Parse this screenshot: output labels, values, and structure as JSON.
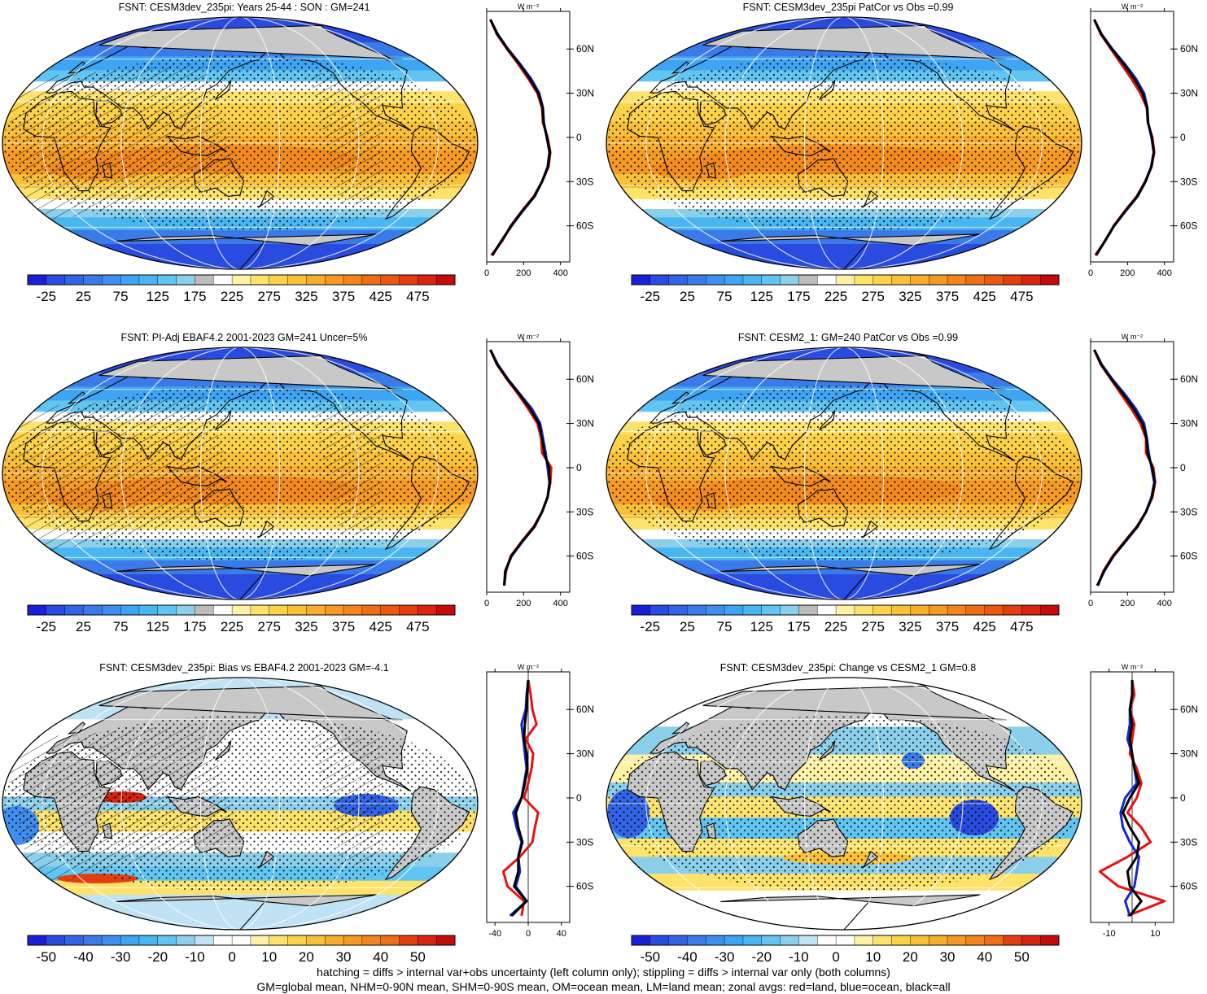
{
  "panels": [
    {
      "id": "p1",
      "title": "FSNT: CESM3dev_235pi: Years 25-44 : SON : GM=241",
      "kind": "abs",
      "hatched": true,
      "colorbar_labels": [
        "-25",
        "25",
        "75",
        "125",
        "175",
        "225",
        "275",
        "325",
        "375",
        "425",
        "475"
      ],
      "zonal": {
        "xticks": [
          "0",
          "200",
          "400"
        ],
        "xlim": [
          0,
          450
        ],
        "unit": "W m⁻²",
        "lat_labels": [
          "60N",
          "30N",
          "0",
          "30S",
          "60S"
        ]
      }
    },
    {
      "id": "p2",
      "title": "FSNT: CESM3dev_235pi PatCor vs Obs =0.99",
      "kind": "abs",
      "hatched": false,
      "colorbar_labels": [
        "-25",
        "25",
        "75",
        "125",
        "175",
        "225",
        "275",
        "325",
        "375",
        "425",
        "475"
      ],
      "zonal": {
        "xticks": [
          "0",
          "200",
          "400"
        ],
        "xlim": [
          0,
          450
        ],
        "unit": "W m⁻²",
        "lat_labels": [
          "60N",
          "30N",
          "0",
          "30S",
          "60S"
        ]
      }
    },
    {
      "id": "p3",
      "title": "FSNT: PI-Adj EBAF4.2 2001-2023 GM=241 Uncer=5%",
      "kind": "abs",
      "hatched": true,
      "colorbar_labels": [
        "-25",
        "25",
        "75",
        "125",
        "175",
        "225",
        "275",
        "325",
        "375",
        "425",
        "475"
      ],
      "zonal": {
        "xticks": [
          "0",
          "200",
          "400"
        ],
        "xlim": [
          0,
          450
        ],
        "unit": "W m⁻²",
        "lat_labels": [
          "60N",
          "30N",
          "0",
          "30S",
          "60S"
        ]
      }
    },
    {
      "id": "p4",
      "title": "FSNT: CESM2_1: GM=240 PatCor vs Obs =0.99",
      "kind": "abs",
      "hatched": false,
      "colorbar_labels": [
        "-25",
        "25",
        "75",
        "125",
        "175",
        "225",
        "275",
        "325",
        "375",
        "425",
        "475"
      ],
      "zonal": {
        "xticks": [
          "0",
          "200",
          "400"
        ],
        "xlim": [
          0,
          450
        ],
        "unit": "W m⁻²",
        "lat_labels": [
          "60N",
          "30N",
          "0",
          "30S",
          "60S"
        ]
      }
    },
    {
      "id": "p5",
      "title": "FSNT: CESM3dev_235pi: Bias vs EBAF4.2 2001-2023  GM=-4.1",
      "kind": "diff",
      "hatched": true,
      "colorbar_labels": [
        "-50",
        "-40",
        "-30",
        "-20",
        "-10",
        "0",
        "10",
        "20",
        "30",
        "40",
        "50"
      ],
      "zonal": {
        "xticks": [
          "-40",
          "0",
          "40"
        ],
        "xlim": [
          -50,
          50
        ],
        "unit": "W m⁻²",
        "lat_labels": [
          "60N",
          "30N",
          "0",
          "30S",
          "60S"
        ]
      }
    },
    {
      "id": "p6",
      "title": "FSNT: CESM3dev_235pi: Change vs CESM2_1 GM=0.8",
      "kind": "diff",
      "hatched": false,
      "colorbar_labels": [
        "-50",
        "-40",
        "-30",
        "-20",
        "-10",
        "0",
        "10",
        "20",
        "30",
        "40",
        "50"
      ],
      "zonal": {
        "xticks": [
          "-10",
          "10"
        ],
        "xlim": [
          -18,
          18
        ],
        "unit": "W m⁻²",
        "lat_labels": [
          "60N",
          "30N",
          "0",
          "30S",
          "60S"
        ]
      }
    }
  ],
  "colors": {
    "abs_scale": [
      "#1b20d8",
      "#2a4be0",
      "#3363e6",
      "#3b7ae9",
      "#3f8ff0",
      "#3fa4f2",
      "#49b6f2",
      "#62c4f0",
      "#8ccfeb",
      "#bcbcbc",
      "#ffffff",
      "#fff2a8",
      "#fde36c",
      "#fbd24a",
      "#f9c13a",
      "#f7ae2e",
      "#f59a24",
      "#f2861c",
      "#ee7016",
      "#ea5812",
      "#e23e10",
      "#d82410",
      "#c40c0c"
    ],
    "diff_scale": [
      "#1b20d8",
      "#2a4be0",
      "#3363e6",
      "#3b7ae9",
      "#3f8ff0",
      "#3fa4f2",
      "#49b6f2",
      "#62c4f0",
      "#8ccfeb",
      "#bfe2f4",
      "#ffffff",
      "#ffffff",
      "#fff2a8",
      "#fde36c",
      "#fbd24a",
      "#f9c13a",
      "#f7ae2e",
      "#f59a24",
      "#f2861c",
      "#ee7016",
      "#e23e10",
      "#d82410",
      "#c40c0c"
    ],
    "land": "#c8c8c8",
    "zonal_red": "#e81010",
    "zonal_blue": "#1428d0",
    "zonal_black": "#000000"
  },
  "chart_data": [
    {
      "type": "line",
      "panel": "p1",
      "ylabel": "W m⁻²",
      "lat": [
        -80,
        -70,
        -60,
        -50,
        -40,
        -30,
        -20,
        -10,
        0,
        10,
        20,
        30,
        40,
        50,
        60,
        70,
        80
      ],
      "series": [
        {
          "color": "red",
          "values": [
            25,
            85,
            130,
            190,
            255,
            300,
            335,
            345,
            330,
            305,
            300,
            275,
            225,
            170,
            110,
            55,
            20
          ]
        },
        {
          "color": "blue",
          "values": [
            30,
            80,
            135,
            195,
            260,
            300,
            330,
            340,
            325,
            310,
            305,
            285,
            240,
            180,
            115,
            60,
            20
          ]
        },
        {
          "color": "black",
          "values": [
            30,
            82,
            133,
            193,
            258,
            300,
            332,
            342,
            327,
            308,
            303,
            280,
            232,
            176,
            113,
            58,
            20
          ]
        }
      ]
    },
    {
      "type": "line",
      "panel": "p2",
      "ylabel": "W m⁻²",
      "lat": [
        -80,
        -70,
        -60,
        -50,
        -40,
        -30,
        -20,
        -10,
        0,
        10,
        20,
        30,
        40,
        50,
        60,
        70,
        80
      ],
      "series": [
        {
          "color": "red",
          "values": [
            25,
            80,
            125,
            185,
            250,
            295,
            330,
            345,
            335,
            310,
            305,
            270,
            220,
            165,
            110,
            55,
            20
          ]
        },
        {
          "color": "blue",
          "values": [
            30,
            78,
            128,
            190,
            255,
            298,
            328,
            342,
            330,
            312,
            308,
            290,
            245,
            185,
            118,
            60,
            20
          ]
        },
        {
          "color": "black",
          "values": [
            30,
            79,
            127,
            188,
            253,
            297,
            329,
            343,
            332,
            311,
            306,
            282,
            235,
            178,
            115,
            58,
            20
          ]
        }
      ]
    },
    {
      "type": "line",
      "panel": "p3",
      "ylabel": "W m⁻²",
      "lat": [
        -80,
        -70,
        -60,
        -50,
        -40,
        -30,
        -20,
        -10,
        0,
        10,
        20,
        30,
        40,
        50,
        60,
        70,
        80
      ],
      "series": [
        {
          "color": "red",
          "values": [
            95,
            105,
            130,
            190,
            255,
            300,
            330,
            345,
            350,
            300,
            295,
            275,
            225,
            170,
            110,
            55,
            20
          ]
        },
        {
          "color": "blue",
          "values": [
            95,
            100,
            135,
            195,
            260,
            300,
            330,
            340,
            330,
            320,
            305,
            290,
            245,
            180,
            115,
            60,
            20
          ]
        },
        {
          "color": "black",
          "values": [
            95,
            102,
            133,
            193,
            258,
            300,
            330,
            342,
            338,
            312,
            300,
            283,
            235,
            176,
            113,
            58,
            20
          ]
        }
      ]
    },
    {
      "type": "line",
      "panel": "p4",
      "ylabel": "W m⁻²",
      "lat": [
        -80,
        -70,
        -60,
        -50,
        -40,
        -30,
        -20,
        -10,
        0,
        10,
        20,
        30,
        40,
        50,
        60,
        70,
        80
      ],
      "series": [
        {
          "color": "red",
          "values": [
            40,
            70,
            120,
            185,
            250,
            300,
            335,
            350,
            340,
            300,
            300,
            270,
            220,
            165,
            110,
            55,
            20
          ]
        },
        {
          "color": "blue",
          "values": [
            35,
            75,
            125,
            190,
            255,
            300,
            330,
            345,
            330,
            315,
            305,
            290,
            245,
            185,
            118,
            60,
            20
          ]
        },
        {
          "color": "black",
          "values": [
            38,
            73,
            123,
            188,
            253,
            300,
            332,
            347,
            335,
            308,
            303,
            281,
            233,
            176,
            113,
            58,
            20
          ]
        }
      ]
    },
    {
      "type": "line",
      "panel": "p5",
      "ylabel": "W m⁻²",
      "lat": [
        -80,
        -70,
        -60,
        -50,
        -40,
        -30,
        -20,
        -10,
        0,
        10,
        20,
        30,
        40,
        50,
        60,
        70,
        80
      ],
      "series": [
        {
          "color": "red",
          "values": [
            -8,
            -5,
            -25,
            -30,
            -10,
            5,
            8,
            12,
            -5,
            0,
            4,
            6,
            -3,
            10,
            5,
            3,
            0
          ]
        },
        {
          "color": "blue",
          "values": [
            -22,
            -2,
            -15,
            -10,
            -12,
            -8,
            -14,
            -18,
            -8,
            -5,
            -2,
            -4,
            -6,
            -8,
            -3,
            -2,
            0
          ]
        },
        {
          "color": "black",
          "values": [
            -20,
            -2,
            -17,
            -12,
            -12,
            -7,
            -12,
            -15,
            -8,
            -4,
            -1,
            -2,
            -5,
            -4,
            -2,
            -1,
            0
          ]
        }
      ]
    },
    {
      "type": "line",
      "panel": "p6",
      "ylabel": "W m⁻²",
      "lat": [
        -80,
        -70,
        -60,
        -50,
        -40,
        -30,
        -20,
        -10,
        0,
        10,
        20,
        30,
        40,
        50,
        60,
        70,
        80
      ],
      "series": [
        {
          "color": "red",
          "values": [
            -2,
            14,
            -6,
            -14,
            -2,
            8,
            4,
            -2,
            2,
            4,
            2,
            -1,
            0,
            1,
            -1,
            1,
            0
          ]
        },
        {
          "color": "blue",
          "values": [
            -1,
            -3,
            1,
            2,
            3,
            -1,
            -4,
            -5,
            -3,
            2,
            1,
            0,
            -2,
            -1,
            -1,
            0,
            0
          ]
        },
        {
          "color": "black",
          "values": [
            -1,
            4,
            -1,
            -2,
            2,
            3,
            -1,
            -4,
            -1,
            3,
            1,
            0,
            -1,
            0,
            -1,
            0,
            0
          ]
        }
      ]
    }
  ],
  "footer": {
    "line1": "hatching = diffs > internal var+obs uncertainty (left column only); stippling = diffs > internal var only (both columns)",
    "line2": "GM=global mean, NHM=0-90N mean, SHM=0-90S mean, OM=ocean mean, LM=land mean; zonal avgs: red=land, blue=ocean, black=all"
  }
}
